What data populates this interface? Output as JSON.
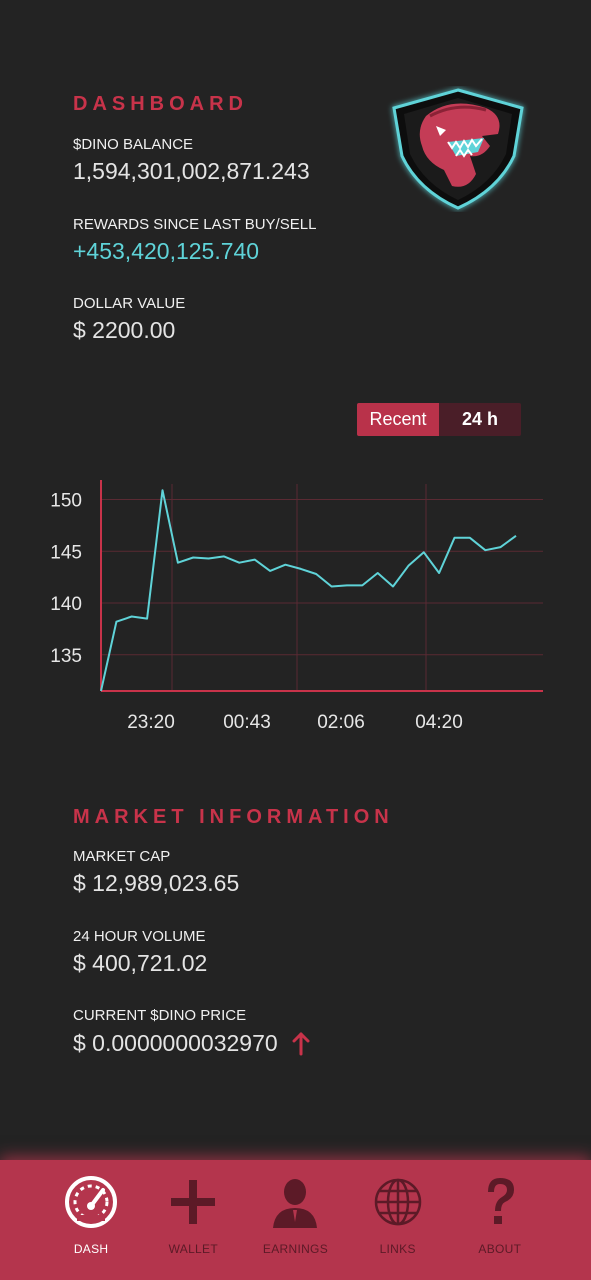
{
  "dashboard": {
    "title": "DASHBOARD",
    "balance_label": "$DINO BALANCE",
    "balance_value": "1,594,301,002,871.243",
    "rewards_label": "REWARDS SINCE LAST BUY/SELL",
    "rewards_value": "+453,420,125.740",
    "dollar_label": "DOLLAR VALUE",
    "dollar_value": "$ 2200.00"
  },
  "range_toggle": {
    "options": [
      "Recent",
      "24 h"
    ],
    "selected": "Recent"
  },
  "chart_data": {
    "type": "line",
    "x_ticks": [
      "23:20",
      "00:43",
      "02:06",
      "04:20"
    ],
    "y_ticks": [
      135,
      140,
      145,
      150
    ],
    "ylim": [
      131.5,
      151.5
    ],
    "grid": true,
    "series": [
      {
        "values": [
          131.5,
          138.2,
          138.7,
          138.5,
          150.9,
          143.9,
          144.4,
          144.3,
          144.5,
          143.9,
          144.2,
          143.1,
          143.7,
          143.3,
          142.8,
          141.6,
          141.7,
          141.7,
          142.9,
          141.6,
          143.6,
          144.9,
          142.9,
          146.3,
          146.3,
          145.1,
          145.4,
          146.5
        ],
        "color": "#5fd3d8"
      }
    ],
    "colors": {
      "axis": "#c8334a",
      "grid": "#5a2a33",
      "tick_text": "#e6e6e6"
    }
  },
  "market": {
    "title": "MARKET INFORMATION",
    "cap_label": "MARKET CAP",
    "cap_value": "$ 12,989,023.65",
    "volume_label": "24 HOUR VOLUME",
    "volume_value": "$ 400,721.02",
    "price_label": "CURRENT $DINO PRICE",
    "price_value": "$ 0.0000000032970",
    "price_trend": "up"
  },
  "nav": {
    "items": [
      {
        "label": "DASH",
        "icon": "speedometer-icon",
        "active": true
      },
      {
        "label": "WALLET",
        "icon": "plus-icon",
        "active": false
      },
      {
        "label": "EARNINGS",
        "icon": "person-icon",
        "active": false
      },
      {
        "label": "LINKS",
        "icon": "globe-icon",
        "active": false
      },
      {
        "label": "ABOUT",
        "icon": "question-icon",
        "active": false
      }
    ]
  },
  "colors": {
    "background": "#232323",
    "accent_red": "#c8334a",
    "accent_cyan": "#5fd3d8",
    "nav_bg": "#b4354d"
  }
}
